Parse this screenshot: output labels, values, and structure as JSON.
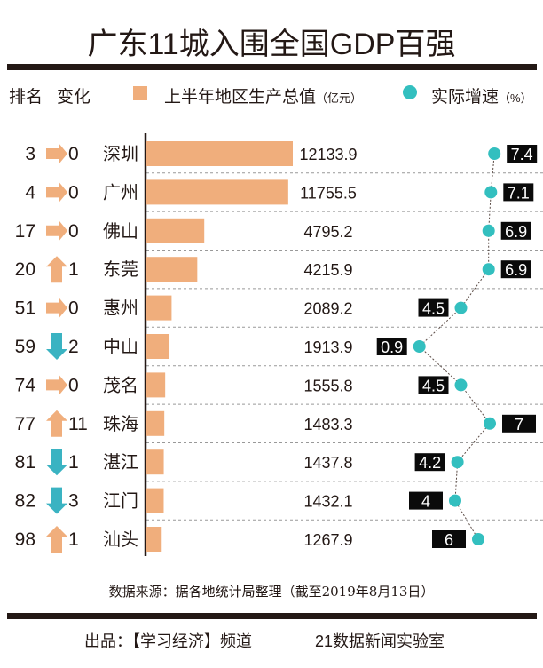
{
  "title": "广东11城入围全国GDP百强",
  "legend": {
    "rank": "排名",
    "change": "变化",
    "gdp_label": "上半年地区生产总值",
    "gdp_unit": "（亿元）",
    "growth_label": "实际增速",
    "growth_unit": "（%）"
  },
  "colors": {
    "gdp_bar": "#f0ae7c",
    "growth_dot": "#33bfbf",
    "arrow_up_flat": "#f0ae7c",
    "arrow_down": "#3ab3c2",
    "label_box": "#0a0a0a"
  },
  "chart_data": {
    "type": "bar",
    "categories": [
      "深圳",
      "广州",
      "佛山",
      "东莞",
      "惠州",
      "中山",
      "茂名",
      "珠海",
      "湛江",
      "江门",
      "汕头"
    ],
    "rank": [
      3,
      4,
      17,
      20,
      51,
      59,
      74,
      77,
      81,
      82,
      98
    ],
    "rank_change_direction": [
      "flat",
      "flat",
      "flat",
      "up",
      "flat",
      "down",
      "flat",
      "up",
      "down",
      "down",
      "up"
    ],
    "rank_change": [
      0,
      0,
      0,
      1,
      0,
      2,
      0,
      11,
      1,
      3,
      1
    ],
    "series": [
      {
        "name": "上半年地区生产总值",
        "unit": "亿元",
        "type": "bar",
        "values": [
          12133.9,
          11755.5,
          4795.2,
          4215.9,
          2089.2,
          1913.9,
          1555.8,
          1483.3,
          1437.8,
          1432.1,
          1267.9
        ],
        "labels": [
          "12133.9",
          "11755.5",
          "4795.2",
          "4215.9",
          "2089.2",
          "1913.9",
          "1555.8",
          "1483.3",
          "1437.8",
          "1432.1",
          "1267.9"
        ]
      },
      {
        "name": "实际增速",
        "unit": "%",
        "type": "line",
        "values": [
          7.4,
          7.1,
          6.9,
          6.9,
          4.5,
          0.9,
          4.5,
          7,
          4.2,
          4,
          6
        ],
        "labels": [
          "7.4",
          "7.1",
          "6.9",
          "6.9",
          "4.5",
          "0.9",
          "4.5",
          "7",
          "4.2",
          "4",
          "6"
        ]
      }
    ]
  },
  "source": "数据来源：据各地统计局整理（截至2019年8月13日）",
  "credit": {
    "producer": "出品：【学习经济】频道",
    "lab": "21数据新闻实验室"
  }
}
